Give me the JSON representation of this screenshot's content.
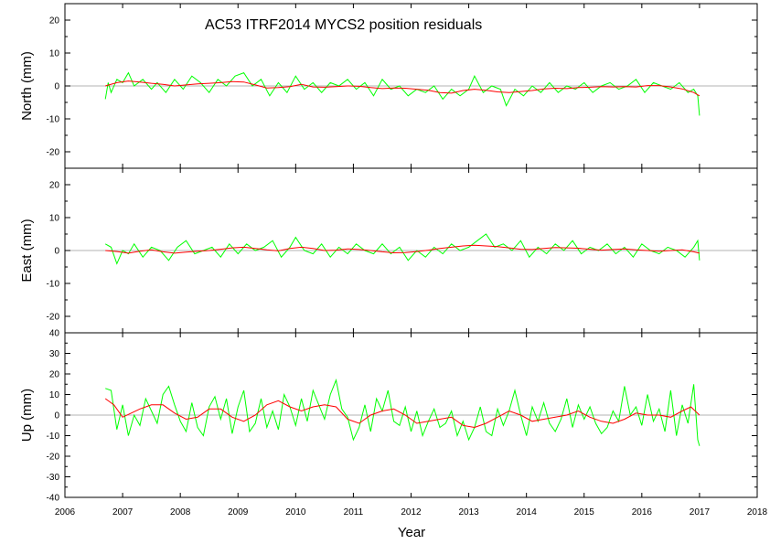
{
  "chart_data": {
    "type": "line",
    "title": "AC53  ITRF2014 MYCS2 position residuals",
    "xlabel": "Year",
    "xlim": [
      2006,
      2018
    ],
    "x_ticks": [
      "2006",
      "2007",
      "2008",
      "2009",
      "2010",
      "2011",
      "2012",
      "2013",
      "2014",
      "2015",
      "2016",
      "2017",
      "2018"
    ],
    "colors": {
      "residuals": "#00ff00",
      "smooth": "#ff0000",
      "zero_line": "#b3b3b3"
    },
    "panels": [
      {
        "ylabel": "North (mm)",
        "ylim": [
          -25,
          25
        ],
        "y_ticks": [
          "-20",
          "-10",
          "0",
          "10",
          "20"
        ],
        "series": [
          {
            "x": [
              2006.7,
              2006.75,
              2006.8,
              2006.9,
              2007.0,
              2007.1,
              2007.2,
              2007.35,
              2007.5,
              2007.6,
              2007.75,
              2007.9,
              2008.05,
              2008.2,
              2008.35,
              2008.5,
              2008.65,
              2008.8,
              2008.95,
              2009.1,
              2009.25,
              2009.4,
              2009.55,
              2009.7,
              2009.85,
              2010.0,
              2010.15,
              2010.3,
              2010.45,
              2010.6,
              2010.75,
              2010.9,
              2011.05,
              2011.2,
              2011.35,
              2011.5,
              2011.65,
              2011.8,
              2011.95,
              2012.1,
              2012.25,
              2012.4,
              2012.55,
              2012.7,
              2012.85,
              2013.0,
              2013.1,
              2013.25,
              2013.4,
              2013.55,
              2013.65,
              2013.8,
              2013.95,
              2014.1,
              2014.25,
              2014.4,
              2014.55,
              2014.7,
              2014.85,
              2015.0,
              2015.15,
              2015.3,
              2015.45,
              2015.6,
              2015.75,
              2015.9,
              2016.05,
              2016.2,
              2016.35,
              2016.5,
              2016.65,
              2016.8,
              2016.9,
              2016.97,
              2017.0
            ],
            "y": [
              -4,
              1,
              -2,
              2,
              1,
              4,
              0,
              2,
              -1,
              1,
              -2,
              2,
              -1,
              3,
              1,
              -2,
              2,
              0,
              3,
              4,
              0,
              2,
              -3,
              1,
              -2,
              3,
              -1,
              1,
              -2,
              1,
              0,
              2,
              -1,
              1,
              -3,
              2,
              -1,
              0,
              -3,
              -1,
              -2,
              0,
              -4,
              -1,
              -3,
              -1,
              3,
              -2,
              0,
              -1,
              -6,
              -1,
              -3,
              0,
              -2,
              1,
              -2,
              0,
              -1,
              1,
              -2,
              0,
              1,
              -1,
              0,
              2,
              -2,
              1,
              0,
              -1,
              1,
              -2,
              -1,
              -3,
              -9
            ]
          },
          {
            "x": [
              2006.7,
              2006.9,
              2007.1,
              2007.3,
              2007.5,
              2007.7,
              2007.9,
              2008.1,
              2008.3,
              2008.5,
              2008.7,
              2008.9,
              2009.1,
              2009.3,
              2009.5,
              2009.7,
              2009.9,
              2010.1,
              2010.3,
              2010.5,
              2010.7,
              2010.9,
              2011.1,
              2011.3,
              2011.5,
              2011.7,
              2011.9,
              2012.1,
              2012.3,
              2012.5,
              2012.7,
              2012.9,
              2013.1,
              2013.3,
              2013.5,
              2013.7,
              2013.9,
              2014.1,
              2014.3,
              2014.5,
              2014.7,
              2014.9,
              2015.1,
              2015.3,
              2015.5,
              2015.7,
              2015.9,
              2016.1,
              2016.3,
              2016.5,
              2016.7,
              2016.9,
              2017.0
            ],
            "y": [
              0,
              1,
              1.5,
              1.2,
              0.8,
              0.5,
              0,
              0.3,
              0.6,
              0.8,
              1.0,
              1.3,
              1.2,
              0.3,
              -0.6,
              -0.5,
              -0.2,
              0.5,
              -0.3,
              -0.4,
              -0.2,
              0,
              -0.1,
              -0.5,
              -0.8,
              -0.6,
              -0.7,
              -1.0,
              -1.3,
              -2.0,
              -2.2,
              -1.4,
              -1.0,
              -1.3,
              -1.8,
              -2.0,
              -1.7,
              -1.4,
              -0.9,
              -0.7,
              -0.8,
              -0.5,
              -0.4,
              -0.2,
              -0.3,
              -0.2,
              -0.3,
              0.1,
              0.1,
              -0.3,
              -0.9,
              -2.0,
              -3.0
            ]
          }
        ]
      },
      {
        "ylabel": "East (mm)",
        "ylim": [
          -25,
          25
        ],
        "y_ticks": [
          "-20",
          "-10",
          "0",
          "10",
          "20"
        ],
        "series": [
          {
            "x": [
              2006.7,
              2006.8,
              2006.9,
              2007.0,
              2007.1,
              2007.2,
              2007.35,
              2007.5,
              2007.65,
              2007.8,
              2007.95,
              2008.1,
              2008.25,
              2008.4,
              2008.55,
              2008.7,
              2008.85,
              2009.0,
              2009.15,
              2009.3,
              2009.45,
              2009.6,
              2009.75,
              2009.9,
              2010.0,
              2010.15,
              2010.3,
              2010.45,
              2010.6,
              2010.75,
              2010.9,
              2011.05,
              2011.2,
              2011.35,
              2011.5,
              2011.65,
              2011.8,
              2011.95,
              2012.1,
              2012.25,
              2012.4,
              2012.55,
              2012.7,
              2012.85,
              2013.0,
              2013.15,
              2013.3,
              2013.45,
              2013.6,
              2013.75,
              2013.9,
              2014.05,
              2014.2,
              2014.35,
              2014.5,
              2014.65,
              2014.8,
              2014.95,
              2015.1,
              2015.25,
              2015.4,
              2015.55,
              2015.7,
              2015.85,
              2016.0,
              2016.15,
              2016.3,
              2016.45,
              2016.6,
              2016.75,
              2016.9,
              2016.97,
              2017.0
            ],
            "y": [
              2,
              1,
              -4,
              0,
              -1,
              2,
              -2,
              1,
              0,
              -3,
              1,
              3,
              -1,
              0,
              1,
              -2,
              2,
              -1,
              2,
              0,
              1,
              3,
              -2,
              1,
              4,
              0,
              -1,
              2,
              -2,
              1,
              -1,
              2,
              0,
              -1,
              2,
              -1,
              1,
              -3,
              0,
              -2,
              1,
              -1,
              2,
              0,
              1,
              3,
              5,
              1,
              2,
              0,
              3,
              -2,
              1,
              -1,
              2,
              0,
              3,
              -1,
              1,
              0,
              2,
              -1,
              1,
              -2,
              2,
              0,
              -1,
              1,
              0,
              -2,
              1,
              3,
              -3
            ]
          },
          {
            "x": [
              2006.7,
              2006.9,
              2007.1,
              2007.3,
              2007.5,
              2007.7,
              2007.9,
              2008.1,
              2008.3,
              2008.5,
              2008.7,
              2008.9,
              2009.1,
              2009.3,
              2009.5,
              2009.7,
              2009.9,
              2010.1,
              2010.3,
              2010.5,
              2010.7,
              2010.9,
              2011.1,
              2011.3,
              2011.5,
              2011.7,
              2011.9,
              2012.1,
              2012.3,
              2012.5,
              2012.7,
              2012.9,
              2013.1,
              2013.3,
              2013.5,
              2013.7,
              2013.9,
              2014.1,
              2014.3,
              2014.5,
              2014.7,
              2014.9,
              2015.1,
              2015.3,
              2015.5,
              2015.7,
              2015.9,
              2016.1,
              2016.3,
              2016.5,
              2016.7,
              2016.9,
              2017.0
            ],
            "y": [
              0,
              -0.3,
              -0.8,
              -0.2,
              0.2,
              -0.4,
              -0.8,
              -0.5,
              -0.2,
              0.0,
              0.4,
              0.8,
              1.0,
              0.6,
              0.2,
              -0.1,
              0.6,
              1.0,
              0.6,
              0.0,
              0.1,
              0.5,
              0.3,
              0.0,
              -0.4,
              -0.7,
              -0.6,
              -0.3,
              0.1,
              0.6,
              1.0,
              1.4,
              1.6,
              1.4,
              1.2,
              0.8,
              0.4,
              0.3,
              0.6,
              0.9,
              0.8,
              0.7,
              0.4,
              0.1,
              0.3,
              0.5,
              0.2,
              0.0,
              -0.2,
              0.0,
              0.2,
              -0.4,
              -0.8
            ]
          }
        ]
      },
      {
        "ylabel": "Up (mm)",
        "ylim": [
          -40,
          40
        ],
        "y_ticks": [
          "-40",
          "-30",
          "-20",
          "-10",
          "0",
          "10",
          "20",
          "30",
          "40"
        ],
        "series": [
          {
            "x": [
              2006.7,
              2006.8,
              2006.9,
              2007.0,
              2007.1,
              2007.2,
              2007.3,
              2007.4,
              2007.5,
              2007.6,
              2007.7,
              2007.8,
              2007.9,
              2008.0,
              2008.1,
              2008.2,
              2008.3,
              2008.4,
              2008.5,
              2008.6,
              2008.7,
              2008.8,
              2008.9,
              2009.0,
              2009.1,
              2009.2,
              2009.3,
              2009.4,
              2009.5,
              2009.6,
              2009.7,
              2009.8,
              2009.9,
              2010.0,
              2010.1,
              2010.2,
              2010.3,
              2010.4,
              2010.5,
              2010.6,
              2010.7,
              2010.8,
              2010.9,
              2011.0,
              2011.1,
              2011.2,
              2011.3,
              2011.4,
              2011.5,
              2011.6,
              2011.7,
              2011.8,
              2011.9,
              2012.0,
              2012.1,
              2012.2,
              2012.3,
              2012.4,
              2012.5,
              2012.6,
              2012.7,
              2012.8,
              2012.9,
              2013.0,
              2013.1,
              2013.2,
              2013.3,
              2013.4,
              2013.5,
              2013.6,
              2013.7,
              2013.8,
              2013.9,
              2014.0,
              2014.1,
              2014.2,
              2014.3,
              2014.4,
              2014.5,
              2014.6,
              2014.7,
              2014.8,
              2014.9,
              2015.0,
              2015.1,
              2015.2,
              2015.3,
              2015.4,
              2015.5,
              2015.6,
              2015.7,
              2015.8,
              2015.9,
              2016.0,
              2016.1,
              2016.2,
              2016.3,
              2016.4,
              2016.5,
              2016.6,
              2016.7,
              2016.8,
              2016.9,
              2016.97,
              2017.0
            ],
            "y": [
              13,
              12,
              -7,
              5,
              -10,
              0,
              -5,
              8,
              2,
              -4,
              10,
              14,
              5,
              -3,
              -8,
              6,
              -6,
              -10,
              4,
              9,
              -2,
              8,
              -9,
              4,
              12,
              -8,
              -4,
              8,
              -6,
              2,
              -7,
              10,
              4,
              -5,
              8,
              -3,
              12,
              5,
              -2,
              10,
              17,
              3,
              -1,
              -12,
              -6,
              5,
              -8,
              8,
              2,
              12,
              -3,
              -5,
              4,
              -8,
              2,
              -10,
              -3,
              3,
              -6,
              -4,
              2,
              -10,
              -3,
              -12,
              -6,
              4,
              -8,
              -10,
              3,
              -5,
              2,
              12,
              0,
              -10,
              4,
              -3,
              6,
              -4,
              -8,
              -2,
              8,
              -6,
              5,
              -2,
              4,
              -4,
              -9,
              -6,
              2,
              -3,
              14,
              0,
              4,
              -5,
              10,
              -3,
              3,
              -8,
              12,
              -10,
              5,
              -4,
              15,
              -12,
              -15
            ]
          },
          {
            "x": [
              2006.7,
              2006.85,
              2007.0,
              2007.15,
              2007.3,
              2007.5,
              2007.7,
              2007.9,
              2008.1,
              2008.3,
              2008.5,
              2008.7,
              2008.9,
              2009.1,
              2009.3,
              2009.5,
              2009.7,
              2009.9,
              2010.1,
              2010.3,
              2010.5,
              2010.7,
              2010.9,
              2011.1,
              2011.3,
              2011.5,
              2011.7,
              2011.9,
              2012.1,
              2012.3,
              2012.5,
              2012.7,
              2012.9,
              2013.1,
              2013.3,
              2013.5,
              2013.7,
              2013.9,
              2014.1,
              2014.3,
              2014.5,
              2014.7,
              2014.9,
              2015.1,
              2015.3,
              2015.5,
              2015.7,
              2015.9,
              2016.1,
              2016.3,
              2016.5,
              2016.7,
              2016.85,
              2017.0
            ],
            "y": [
              8,
              5,
              -1,
              1,
              3,
              5,
              5,
              1,
              -2,
              -1,
              3,
              3,
              -1,
              -3,
              0,
              5,
              7,
              4,
              2,
              4,
              5,
              4,
              -2,
              -4,
              0,
              2,
              3,
              0,
              -4,
              -3,
              -2,
              -1,
              -5,
              -6,
              -4,
              -1,
              2,
              0,
              -3,
              -2,
              -1,
              0,
              2,
              -1,
              -3,
              -4,
              -2,
              1,
              0,
              0,
              -1,
              2,
              4,
              0
            ]
          }
        ]
      }
    ]
  }
}
